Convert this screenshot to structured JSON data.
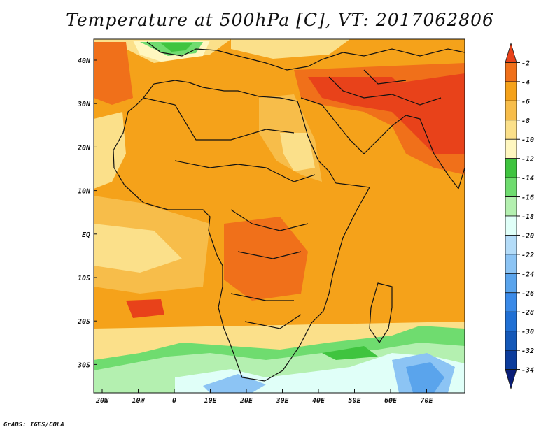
{
  "title": "Temperature at 500hPa [C], VT: 2017062806",
  "credit": "GrADS: IGES/COLA",
  "map": {
    "lat_labels": [
      "40N",
      "30N",
      "20N",
      "10N",
      "EQ",
      "10S",
      "20S",
      "30S"
    ],
    "lon_labels": [
      "20W",
      "10W",
      "0",
      "10E",
      "20E",
      "30E",
      "40E",
      "50E",
      "60E",
      "70E"
    ]
  },
  "colorbar": {
    "labels": [
      "-2",
      "-4",
      "-6",
      "-8",
      "-10",
      "-12",
      "-14",
      "-16",
      "-18",
      "-20",
      "-22",
      "-24",
      "-26",
      "-28",
      "-30",
      "-32",
      "-34"
    ],
    "colors": [
      "#e8421a",
      "#f0701a",
      "#f5a21a",
      "#f7bd4a",
      "#fbe08a",
      "#fff7c0",
      "#3fc43f",
      "#6fdc6f",
      "#b4f0b0",
      "#e0fff8",
      "#b4dcf8",
      "#8cc4f4",
      "#5aa4ec",
      "#3a8ae8",
      "#2070d4",
      "#1458b8",
      "#0c3c9c",
      "#0a1e78"
    ]
  }
}
